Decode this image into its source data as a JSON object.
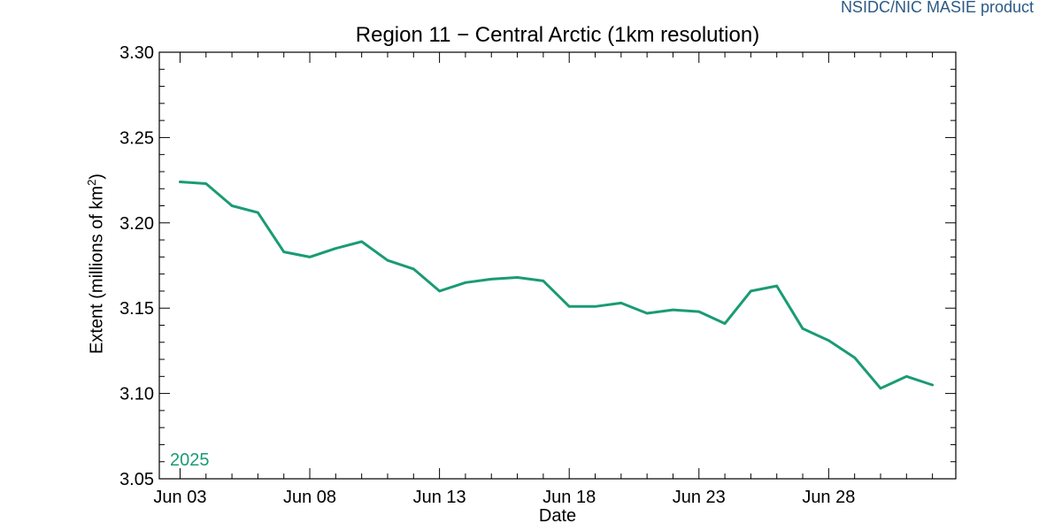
{
  "credit": "NSIDC/NIC MASIE product",
  "chart_data": {
    "type": "line",
    "title": "Region 11 − Central Arctic (1km resolution)",
    "xlabel": "Date",
    "ylabel": "Extent (millions of km",
    "ylabel_sup": "2",
    "ylabel_end": ")",
    "ylim": [
      3.05,
      3.3
    ],
    "y_ticks": [
      "3.05",
      "3.10",
      "3.15",
      "3.20",
      "3.25",
      "3.30"
    ],
    "x_ticks": [
      {
        "label": "Jun 03",
        "day": 3
      },
      {
        "label": "Jun 08",
        "day": 8
      },
      {
        "label": "Jun 13",
        "day": 13
      },
      {
        "label": "Jun 18",
        "day": 18
      },
      {
        "label": "Jun 23",
        "day": 23
      },
      {
        "label": "Jun 28",
        "day": 28
      }
    ],
    "xlim_days": [
      2.2,
      32.9
    ],
    "grid": false,
    "series": [
      {
        "name": "2025",
        "color": "#1a9b74",
        "x": [
          "Jun 03",
          "Jun 04",
          "Jun 05",
          "Jun 06",
          "Jun 07",
          "Jun 08",
          "Jun 09",
          "Jun 10",
          "Jun 11",
          "Jun 12",
          "Jun 13",
          "Jun 14",
          "Jun 15",
          "Jun 16",
          "Jun 17",
          "Jun 18",
          "Jun 19",
          "Jun 20",
          "Jun 21",
          "Jun 22",
          "Jun 23",
          "Jun 24",
          "Jun 25",
          "Jun 26",
          "Jun 27",
          "Jun 28",
          "Jun 29",
          "Jun 30",
          "Jul 01",
          "Jul 02"
        ],
        "days": [
          3,
          4,
          5,
          6,
          7,
          8,
          9,
          10,
          11,
          12,
          13,
          14,
          15,
          16,
          17,
          18,
          19,
          20,
          21,
          22,
          23,
          24,
          25,
          26,
          27,
          28,
          29,
          30,
          31,
          32
        ],
        "values": [
          3.224,
          3.223,
          3.21,
          3.206,
          3.183,
          3.18,
          3.185,
          3.189,
          3.178,
          3.173,
          3.16,
          3.165,
          3.167,
          3.168,
          3.166,
          3.151,
          3.151,
          3.153,
          3.147,
          3.149,
          3.148,
          3.141,
          3.16,
          3.163,
          3.138,
          3.131,
          3.121,
          3.103,
          3.11,
          3.105
        ]
      }
    ]
  }
}
